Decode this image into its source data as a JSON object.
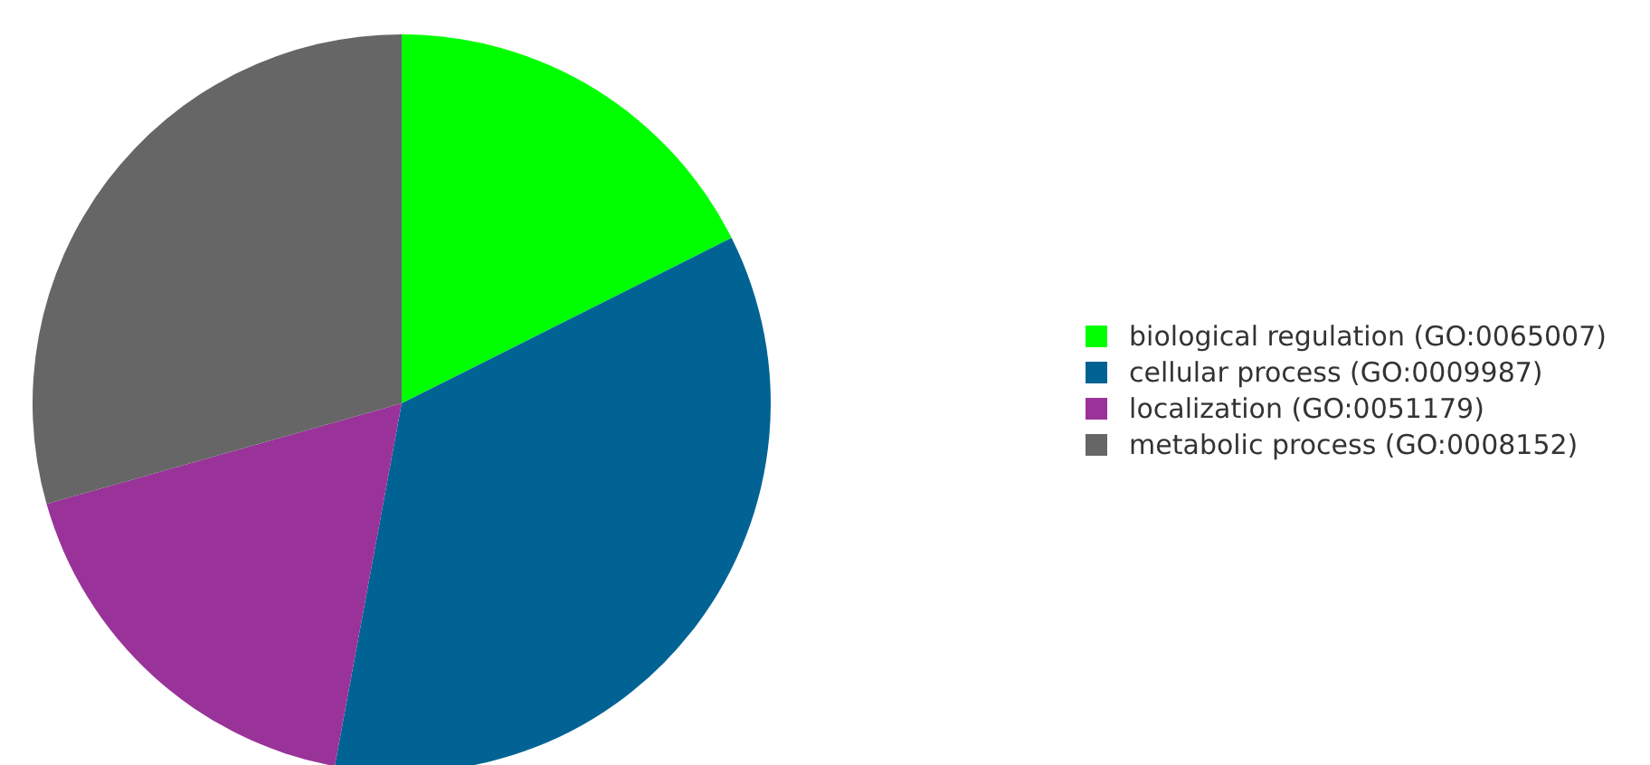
{
  "chart_data": {
    "type": "pie",
    "categories": [
      "biological regulation (GO:0065007)",
      "cellular process (GO:0009987)",
      "localization (GO:0051179)",
      "metabolic process (GO:0008152)"
    ],
    "values": [
      17.6,
      35.3,
      17.7,
      29.4
    ],
    "colors": [
      "#00ff00",
      "#006394",
      "#993399",
      "#666666"
    ],
    "legend": "right"
  }
}
